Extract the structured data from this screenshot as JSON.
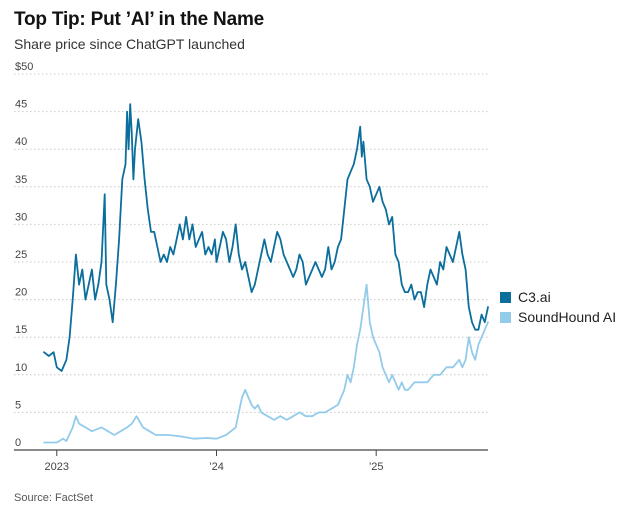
{
  "chart_data": {
    "type": "line",
    "title": "Top Tip: Put ’AI’ in the Name",
    "subtitle": "Share price since ChatGPT launched",
    "source": "Source: FactSet",
    "ylim": [
      0,
      50
    ],
    "yticks": [
      0,
      5,
      10,
      15,
      20,
      25,
      30,
      35,
      40,
      45,
      50
    ],
    "ytick_labels": [
      "0",
      "5",
      "10",
      "15",
      "20",
      "25",
      "30",
      "35",
      "40",
      "45",
      "$50"
    ],
    "xlim": [
      2022.92,
      2025.7
    ],
    "xticks": [
      {
        "value": 2023.0,
        "label": "2023"
      },
      {
        "value": 2024.0,
        "label": "’24"
      },
      {
        "value": 2025.0,
        "label": "’25"
      }
    ],
    "series": [
      {
        "name": "C3.ai",
        "color": "#0b6e9c",
        "points": [
          [
            2022.92,
            13
          ],
          [
            2022.95,
            12.5
          ],
          [
            2022.98,
            13
          ],
          [
            2023.0,
            11
          ],
          [
            2023.03,
            10.5
          ],
          [
            2023.06,
            12
          ],
          [
            2023.08,
            15
          ],
          [
            2023.1,
            20
          ],
          [
            2023.12,
            26
          ],
          [
            2023.14,
            22
          ],
          [
            2023.16,
            24
          ],
          [
            2023.18,
            20
          ],
          [
            2023.2,
            22
          ],
          [
            2023.22,
            24
          ],
          [
            2023.24,
            20
          ],
          [
            2023.26,
            22
          ],
          [
            2023.28,
            25
          ],
          [
            2023.3,
            34
          ],
          [
            2023.31,
            22
          ],
          [
            2023.33,
            20
          ],
          [
            2023.35,
            17
          ],
          [
            2023.37,
            22
          ],
          [
            2023.39,
            28
          ],
          [
            2023.41,
            36
          ],
          [
            2023.43,
            38
          ],
          [
            2023.44,
            45
          ],
          [
            2023.45,
            40
          ],
          [
            2023.46,
            46
          ],
          [
            2023.47,
            42
          ],
          [
            2023.48,
            36
          ],
          [
            2023.49,
            40
          ],
          [
            2023.51,
            44
          ],
          [
            2023.53,
            41
          ],
          [
            2023.55,
            36
          ],
          [
            2023.57,
            32
          ],
          [
            2023.59,
            29
          ],
          [
            2023.61,
            29
          ],
          [
            2023.63,
            27
          ],
          [
            2023.65,
            25
          ],
          [
            2023.67,
            26
          ],
          [
            2023.69,
            25
          ],
          [
            2023.71,
            27
          ],
          [
            2023.73,
            26
          ],
          [
            2023.75,
            28
          ],
          [
            2023.77,
            30
          ],
          [
            2023.79,
            28
          ],
          [
            2023.81,
            31
          ],
          [
            2023.83,
            28
          ],
          [
            2023.85,
            30
          ],
          [
            2023.87,
            27
          ],
          [
            2023.89,
            28
          ],
          [
            2023.91,
            29
          ],
          [
            2023.93,
            26
          ],
          [
            2023.95,
            27
          ],
          [
            2023.97,
            26
          ],
          [
            2023.99,
            28
          ],
          [
            2024.0,
            25
          ],
          [
            2024.02,
            27
          ],
          [
            2024.04,
            29
          ],
          [
            2024.06,
            28
          ],
          [
            2024.08,
            25
          ],
          [
            2024.1,
            27
          ],
          [
            2024.12,
            30
          ],
          [
            2024.14,
            26
          ],
          [
            2024.16,
            24
          ],
          [
            2024.18,
            25
          ],
          [
            2024.2,
            23
          ],
          [
            2024.22,
            21
          ],
          [
            2024.24,
            22
          ],
          [
            2024.26,
            24
          ],
          [
            2024.28,
            26
          ],
          [
            2024.3,
            28
          ],
          [
            2024.32,
            26
          ],
          [
            2024.34,
            25
          ],
          [
            2024.36,
            27
          ],
          [
            2024.38,
            29
          ],
          [
            2024.4,
            28
          ],
          [
            2024.42,
            26
          ],
          [
            2024.44,
            25
          ],
          [
            2024.46,
            24
          ],
          [
            2024.48,
            23
          ],
          [
            2024.5,
            24
          ],
          [
            2024.52,
            26
          ],
          [
            2024.54,
            25
          ],
          [
            2024.56,
            22
          ],
          [
            2024.58,
            23
          ],
          [
            2024.6,
            24
          ],
          [
            2024.62,
            25
          ],
          [
            2024.64,
            24
          ],
          [
            2024.66,
            23
          ],
          [
            2024.68,
            24
          ],
          [
            2024.7,
            27
          ],
          [
            2024.72,
            24
          ],
          [
            2024.74,
            25
          ],
          [
            2024.76,
            27
          ],
          [
            2024.78,
            28
          ],
          [
            2024.8,
            32
          ],
          [
            2024.82,
            36
          ],
          [
            2024.84,
            37
          ],
          [
            2024.86,
            38
          ],
          [
            2024.88,
            40
          ],
          [
            2024.9,
            43
          ],
          [
            2024.91,
            39
          ],
          [
            2024.92,
            41
          ],
          [
            2024.94,
            36
          ],
          [
            2024.96,
            35
          ],
          [
            2024.98,
            33
          ],
          [
            2025.0,
            34
          ],
          [
            2025.02,
            35
          ],
          [
            2025.04,
            33
          ],
          [
            2025.06,
            32
          ],
          [
            2025.08,
            30
          ],
          [
            2025.1,
            31
          ],
          [
            2025.12,
            26
          ],
          [
            2025.14,
            25
          ],
          [
            2025.16,
            22
          ],
          [
            2025.18,
            21
          ],
          [
            2025.2,
            21
          ],
          [
            2025.22,
            22
          ],
          [
            2025.24,
            20
          ],
          [
            2025.26,
            21
          ],
          [
            2025.28,
            21
          ],
          [
            2025.3,
            19
          ],
          [
            2025.32,
            22
          ],
          [
            2025.34,
            24
          ],
          [
            2025.36,
            23
          ],
          [
            2025.38,
            22
          ],
          [
            2025.4,
            25
          ],
          [
            2025.42,
            24
          ],
          [
            2025.44,
            27
          ],
          [
            2025.46,
            26
          ],
          [
            2025.48,
            25
          ],
          [
            2025.5,
            27
          ],
          [
            2025.52,
            29
          ],
          [
            2025.54,
            26
          ],
          [
            2025.56,
            24
          ],
          [
            2025.58,
            19
          ],
          [
            2025.6,
            17
          ],
          [
            2025.62,
            16
          ],
          [
            2025.64,
            16
          ],
          [
            2025.66,
            18
          ],
          [
            2025.68,
            17
          ],
          [
            2025.7,
            19
          ]
        ]
      },
      {
        "name": "SoundHound AI",
        "color": "#93cbea",
        "points": [
          [
            2022.92,
            1
          ],
          [
            2023.0,
            1
          ],
          [
            2023.04,
            1.5
          ],
          [
            2023.06,
            1.2
          ],
          [
            2023.1,
            3
          ],
          [
            2023.12,
            4.5
          ],
          [
            2023.14,
            3.5
          ],
          [
            2023.18,
            3
          ],
          [
            2023.22,
            2.5
          ],
          [
            2023.28,
            3
          ],
          [
            2023.32,
            2.5
          ],
          [
            2023.36,
            2
          ],
          [
            2023.4,
            2.5
          ],
          [
            2023.44,
            3
          ],
          [
            2023.47,
            3.5
          ],
          [
            2023.5,
            4.5
          ],
          [
            2023.54,
            3
          ],
          [
            2023.58,
            2.5
          ],
          [
            2023.62,
            2
          ],
          [
            2023.7,
            2
          ],
          [
            2023.78,
            1.8
          ],
          [
            2023.86,
            1.5
          ],
          [
            2023.94,
            1.6
          ],
          [
            2024.0,
            1.5
          ],
          [
            2024.06,
            2
          ],
          [
            2024.12,
            3
          ],
          [
            2024.14,
            5
          ],
          [
            2024.16,
            7
          ],
          [
            2024.18,
            8
          ],
          [
            2024.2,
            7
          ],
          [
            2024.22,
            6
          ],
          [
            2024.24,
            5.5
          ],
          [
            2024.26,
            6
          ],
          [
            2024.28,
            5
          ],
          [
            2024.32,
            4.5
          ],
          [
            2024.36,
            4
          ],
          [
            2024.4,
            4.5
          ],
          [
            2024.44,
            4
          ],
          [
            2024.48,
            4.5
          ],
          [
            2024.52,
            5
          ],
          [
            2024.56,
            4.5
          ],
          [
            2024.6,
            4.5
          ],
          [
            2024.64,
            5
          ],
          [
            2024.68,
            5
          ],
          [
            2024.72,
            5.5
          ],
          [
            2024.76,
            6
          ],
          [
            2024.8,
            8
          ],
          [
            2024.82,
            10
          ],
          [
            2024.84,
            9
          ],
          [
            2024.86,
            11
          ],
          [
            2024.88,
            14
          ],
          [
            2024.9,
            16
          ],
          [
            2024.92,
            19
          ],
          [
            2024.94,
            22
          ],
          [
            2024.96,
            17
          ],
          [
            2024.98,
            15
          ],
          [
            2025.0,
            14
          ],
          [
            2025.02,
            13
          ],
          [
            2025.04,
            11
          ],
          [
            2025.06,
            10
          ],
          [
            2025.08,
            9
          ],
          [
            2025.1,
            10
          ],
          [
            2025.12,
            9
          ],
          [
            2025.14,
            8
          ],
          [
            2025.16,
            9
          ],
          [
            2025.18,
            8
          ],
          [
            2025.2,
            8
          ],
          [
            2025.22,
            8.5
          ],
          [
            2025.24,
            9
          ],
          [
            2025.28,
            9
          ],
          [
            2025.32,
            9
          ],
          [
            2025.36,
            10
          ],
          [
            2025.4,
            10
          ],
          [
            2025.44,
            11
          ],
          [
            2025.48,
            11
          ],
          [
            2025.52,
            12
          ],
          [
            2025.54,
            11
          ],
          [
            2025.56,
            12
          ],
          [
            2025.58,
            15
          ],
          [
            2025.6,
            13
          ],
          [
            2025.62,
            12
          ],
          [
            2025.64,
            14
          ],
          [
            2025.66,
            15
          ],
          [
            2025.68,
            16
          ],
          [
            2025.7,
            17
          ]
        ]
      }
    ]
  }
}
